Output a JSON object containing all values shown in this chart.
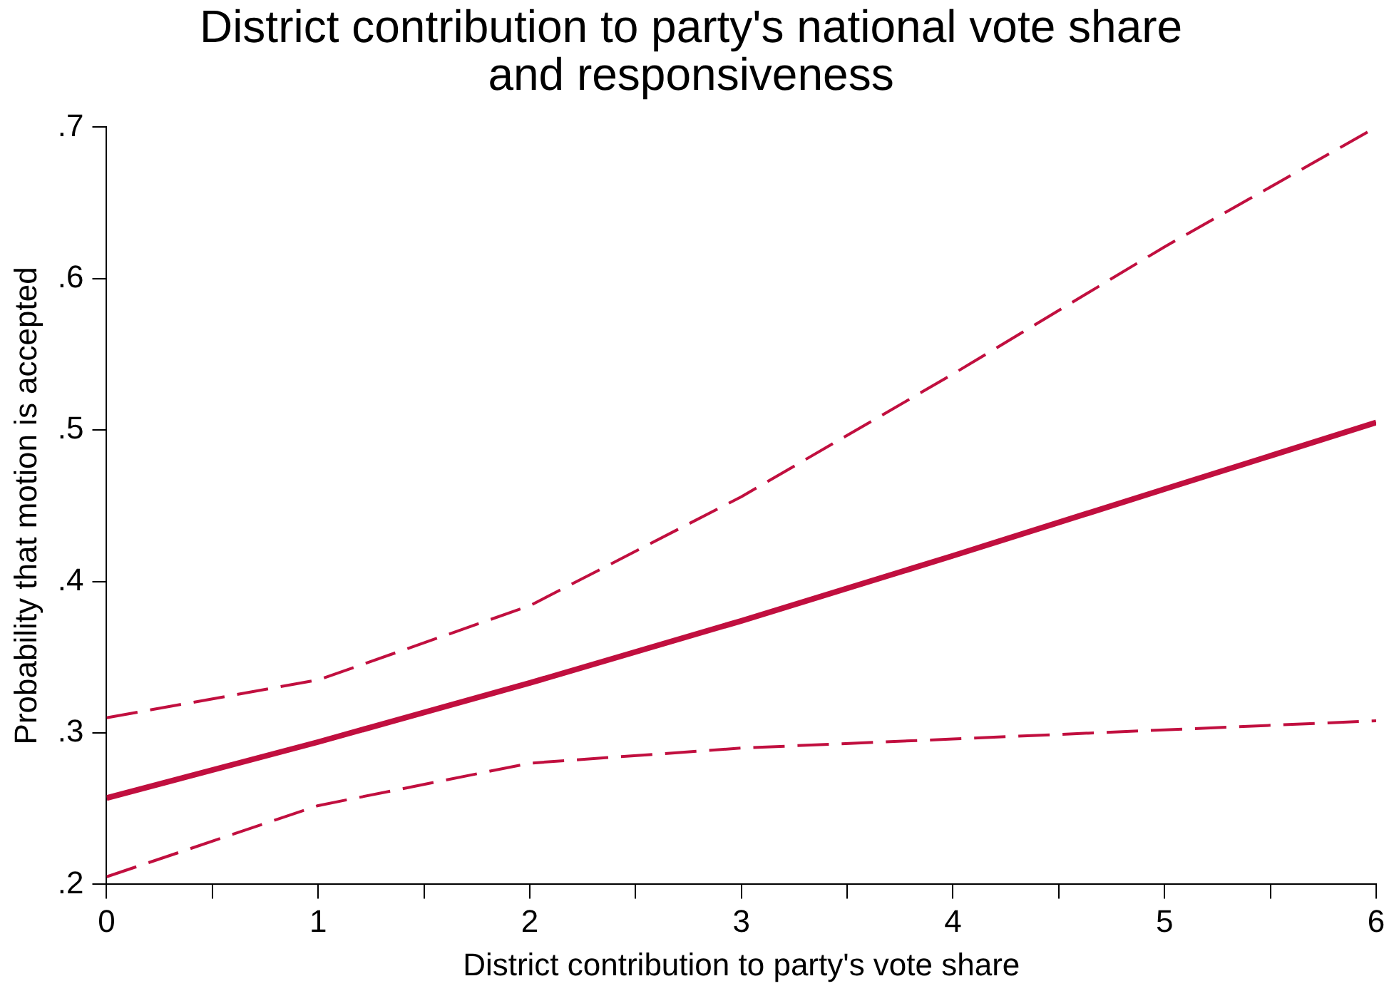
{
  "chart_data": {
    "type": "line",
    "title": "District contribution to party's national vote share\nand responsiveness",
    "xlabel": "District contribution to party's vote share",
    "ylabel": "Probability that motion is accepted",
    "x": [
      0,
      1,
      2,
      3,
      4,
      5,
      6
    ],
    "series": [
      {
        "color": "#c10f3f",
        "line_style": "solid",
        "values": [
          0.257,
          0.294,
          0.333,
          0.374,
          0.417,
          0.461,
          0.505
        ]
      },
      {
        "color": "#c10f3f",
        "line_style": "dashed",
        "values": [
          0.31,
          0.335,
          0.384,
          0.456,
          0.537,
          0.621,
          0.7
        ]
      },
      {
        "color": "#c10f3f",
        "line_style": "dashed",
        "values": [
          0.205,
          0.252,
          0.28,
          0.29,
          0.296,
          0.302,
          0.308
        ]
      }
    ],
    "xlim": [
      0,
      6
    ],
    "xticks": [
      0,
      {
        "value": 0.5,
        "label": null
      },
      1,
      {
        "value": 1.5,
        "label": null
      },
      2,
      {
        "value": 2.5,
        "label": null
      },
      3,
      {
        "value": 3.5,
        "label": null
      },
      4,
      {
        "value": 4.5,
        "label": null
      },
      5,
      {
        "value": 5.5,
        "label": null
      },
      6
    ],
    "ylim": [
      0.2,
      0.7
    ],
    "yticks": [
      {
        "value": 0.2,
        "label": ".2"
      },
      {
        "value": 0.3,
        "label": ".3"
      },
      {
        "value": 0.4,
        "label": ".4"
      },
      {
        "value": 0.5,
        "label": ".5"
      },
      {
        "value": 0.6,
        "label": ".6"
      },
      {
        "value": 0.7,
        "label": ".7"
      }
    ],
    "grid": false,
    "legend": false,
    "marker": "none"
  }
}
